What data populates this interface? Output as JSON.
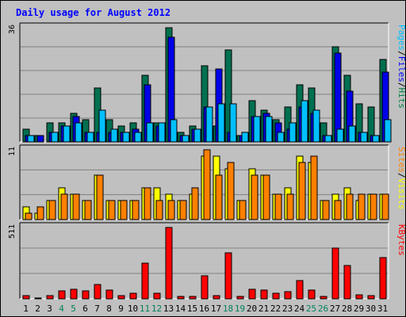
{
  "chart_data": {
    "type": "bar",
    "title": "Daily usage for August 2012",
    "categories": [
      "1",
      "2",
      "3",
      "4",
      "5",
      "6",
      "7",
      "8",
      "9",
      "10",
      "11",
      "12",
      "13",
      "14",
      "15",
      "16",
      "17",
      "18",
      "19",
      "20",
      "21",
      "22",
      "23",
      "24",
      "25",
      "26",
      "27",
      "28",
      "29",
      "30",
      "31"
    ],
    "weekend_days": [
      "4",
      "5",
      "11",
      "12",
      "18",
      "19",
      "25",
      "26"
    ],
    "panels": [
      {
        "id": "hits",
        "max_label": "36",
        "ymax": 36,
        "legend": [
          {
            "name": "Pages",
            "color": "#00c0ff"
          },
          {
            "sep": "/"
          },
          {
            "name": "Files",
            "color": "#0000ff"
          },
          {
            "sep": "/"
          },
          {
            "name": "Hits",
            "color": "#008040"
          }
        ],
        "series": [
          {
            "name": "Hits",
            "color": "#007050",
            "values": [
              4,
              2,
              6,
              6,
              9,
              7,
              17,
              7,
              5,
              6,
              21,
              6,
              36,
              3,
              5,
              24,
              5,
              29,
              2,
              13,
              10,
              7,
              11,
              18,
              17,
              6,
              30,
              21,
              12,
              11,
              26
            ]
          },
          {
            "name": "Files",
            "color": "#0000e8",
            "values": [
              2,
              2,
              3,
              5,
              8,
              3,
              3,
              3,
              3,
              4,
              18,
              5,
              33,
              2,
              4,
              11,
              23,
              3,
              2,
              8,
              9,
              6,
              4,
              11,
              9,
              2,
              28,
              16,
              3,
              2,
              22
            ]
          },
          {
            "name": "Pages",
            "color": "#00c0ff",
            "values": [
              2,
              0,
              3,
              5,
              6,
              3,
              10,
              4,
              3,
              3,
              6,
              6,
              7,
              2,
              4,
              11,
              12,
              12,
              3,
              8,
              8,
              3,
              6,
              13,
              10,
              2,
              4,
              5,
              3,
              2,
              7
            ]
          }
        ]
      },
      {
        "id": "visits",
        "max_label": "11",
        "ymax": 11,
        "legend": [
          {
            "name": "Sites",
            "color": "#ff8000"
          },
          {
            "sep": "/"
          },
          {
            "name": "Visits",
            "color": "#ffff00"
          }
        ],
        "series": [
          {
            "name": "Visits",
            "color": "#ffff00",
            "values": [
              2,
              1,
              3,
              5,
              4,
              3,
              7,
              3,
              3,
              3,
              5,
              5,
              4,
              3,
              4,
              10,
              10,
              8,
              3,
              8,
              7,
              4,
              5,
              10,
              9,
              3,
              4,
              5,
              3,
              4,
              4
            ]
          },
          {
            "name": "Sites",
            "color": "#ff8000",
            "values": [
              1,
              2,
              3,
              4,
              4,
              3,
              7,
              3,
              3,
              3,
              5,
              3,
              3,
              3,
              5,
              11,
              7,
              9,
              3,
              7,
              7,
              4,
              4,
              9,
              10,
              3,
              3,
              4,
              4,
              4,
              4
            ]
          }
        ]
      },
      {
        "id": "kbytes",
        "max_label": "511",
        "ymax": 511,
        "legend": [
          {
            "name": "KBytes",
            "color": "#ff0000"
          }
        ],
        "series": [
          {
            "name": "KBytes",
            "color": "#ff0000",
            "values": [
              25,
              8,
              25,
              55,
              70,
              55,
              100,
              65,
              25,
              40,
              255,
              40,
              511,
              15,
              15,
              165,
              25,
              330,
              15,
              70,
              60,
              40,
              50,
              130,
              60,
              15,
              365,
              240,
              30,
              25,
              295
            ]
          }
        ]
      }
    ]
  },
  "colors": {
    "background": "#c0c0c0",
    "title": "#0000ff",
    "weekday_label": "#000000",
    "weekend_label": "#00805c"
  }
}
